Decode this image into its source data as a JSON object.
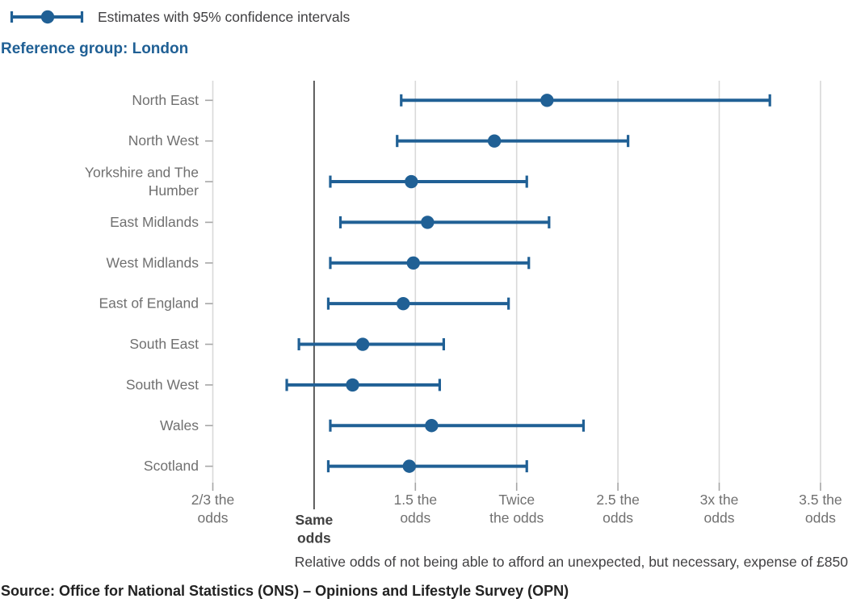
{
  "legend": {
    "label": "Estimates with 95% confidence intervals"
  },
  "subtitle": {
    "label": "Reference group: London"
  },
  "source": {
    "label": "Source: Office for National Statistics (ONS) – Opinions and Lifestyle Survey (OPN)"
  },
  "colors": {
    "accent_blue": "#206095",
    "grid": "#d9d9d9",
    "axis_dark": "#4d4d4d",
    "tick_gray": "#a6a6a6",
    "label_gray": "#707070",
    "label_dark": "#404040",
    "text_dark": "#222222"
  },
  "chart_data": {
    "type": "scatter",
    "subtype": "dot-and-whisker-error-bars",
    "title": "",
    "xlabel": "Relative odds of not being able to afford an unexpected, but necessary, expense of £850",
    "ylabel": "",
    "legend_entry": "Estimates with 95% confidence intervals",
    "reference_group": "London",
    "grid": true,
    "x_axis": {
      "tick_values": [
        0.6667,
        1,
        1.5,
        2,
        2.5,
        3,
        3.5
      ],
      "tick_labels": [
        {
          "label": "2/3 the odds",
          "lines": [
            "2/3 the",
            "odds"
          ]
        },
        {
          "label": "Same odds",
          "lines": [
            "Same",
            "odds"
          ]
        },
        {
          "label": "1.5 the odds",
          "lines": [
            "1.5 the",
            "odds"
          ]
        },
        {
          "label": "Twice the odds",
          "lines": [
            "Twice",
            "the odds"
          ]
        },
        {
          "label": "2.5 the odds",
          "lines": [
            "2.5 the",
            "odds"
          ]
        },
        {
          "label": "3x the odds",
          "lines": [
            "3x the",
            "odds"
          ]
        },
        {
          "label": "3.5 the odds",
          "lines": [
            "3.5 the",
            "odds"
          ]
        }
      ],
      "emphasized_index": 1,
      "reference_line_value": 1,
      "xlim": [
        0.6667,
        3.5
      ]
    },
    "categories": [
      {
        "label": "North East",
        "estimate": 2.15,
        "ci_low": 1.43,
        "ci_high": 3.25
      },
      {
        "label": "North West",
        "estimate": 1.89,
        "ci_low": 1.41,
        "ci_high": 2.55
      },
      {
        "label": "Yorkshire and The Humber",
        "label_lines": [
          "Yorkshire and The",
          "Humber"
        ],
        "estimate": 1.48,
        "ci_low": 1.08,
        "ci_high": 2.05
      },
      {
        "label": "East Midlands",
        "estimate": 1.56,
        "ci_low": 1.13,
        "ci_high": 2.16
      },
      {
        "label": "West Midlands",
        "estimate": 1.49,
        "ci_low": 1.08,
        "ci_high": 2.06
      },
      {
        "label": "East of England",
        "estimate": 1.44,
        "ci_low": 1.07,
        "ci_high": 1.96
      },
      {
        "label": "South East",
        "estimate": 1.24,
        "ci_low": 0.95,
        "ci_high": 1.64
      },
      {
        "label": "South West",
        "estimate": 1.19,
        "ci_low": 0.91,
        "ci_high": 1.62
      },
      {
        "label": "Wales",
        "estimate": 1.58,
        "ci_low": 1.08,
        "ci_high": 2.33
      },
      {
        "label": "Scotland",
        "estimate": 1.47,
        "ci_low": 1.07,
        "ci_high": 2.05
      }
    ]
  }
}
